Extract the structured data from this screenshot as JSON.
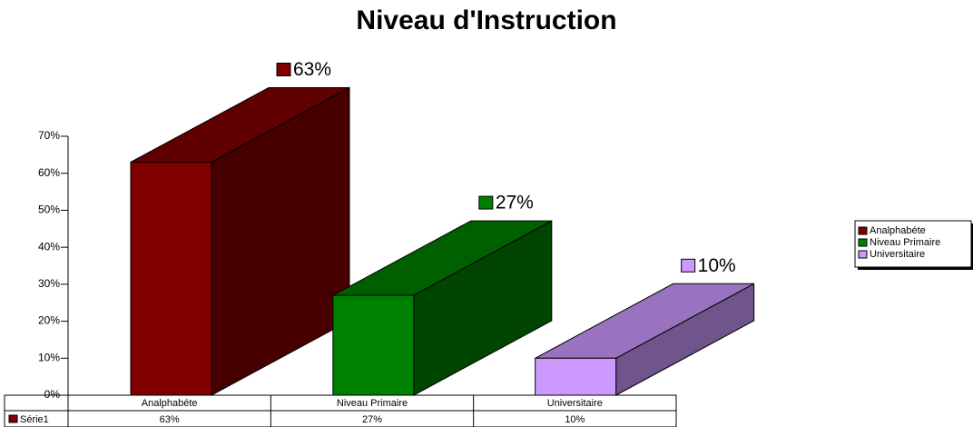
{
  "chart_data": {
    "type": "bar3d",
    "title": "Niveau d'Instruction",
    "categories": [
      "Analphabéte",
      "Niveau Primaire",
      "Universitaire"
    ],
    "colors": [
      "#800000",
      "#008000",
      "#cc99ff"
    ],
    "series": [
      {
        "name": "Série1",
        "color": "#800000",
        "values": [
          63,
          27,
          10
        ],
        "value_labels": [
          "63%",
          "27%",
          "10%"
        ]
      }
    ],
    "ylim": [
      0,
      70
    ],
    "yticks": [
      {
        "value": 0,
        "label": "0%"
      },
      {
        "value": 10,
        "label": "10%"
      },
      {
        "value": 20,
        "label": "20%"
      },
      {
        "value": 30,
        "label": "30%"
      },
      {
        "value": 40,
        "label": "40%"
      },
      {
        "value": 50,
        "label": "50%"
      },
      {
        "value": 60,
        "label": "60%"
      },
      {
        "value": 70,
        "label": "70%"
      }
    ]
  }
}
